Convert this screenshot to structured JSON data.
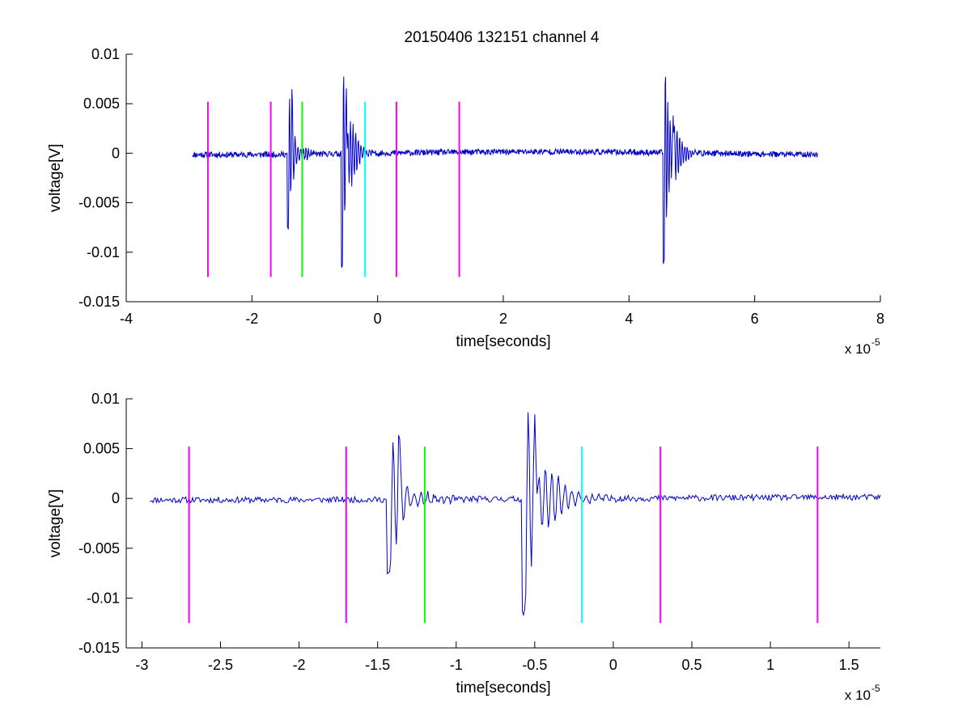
{
  "figure": {
    "title": "20150406 132151 channel 4"
  },
  "chart_data": [
    {
      "type": "line",
      "title": "20150406 132151 channel 4",
      "xlabel": "time[seconds]",
      "ylabel": "voltage[V]",
      "x_exponent_label": "x 10",
      "x_exponent_power": "-5",
      "xlim": [
        -4e-05,
        8e-05
      ],
      "ylim": [
        -0.015,
        0.01
      ],
      "x_ticks": [
        -4e-05,
        -2e-05,
        0,
        2e-05,
        4e-05,
        6e-05,
        8e-05
      ],
      "x_tick_labels": [
        "-4",
        "-2",
        "0",
        "2",
        "4",
        "6",
        "8"
      ],
      "y_ticks": [
        -0.015,
        -0.01,
        -0.005,
        0,
        0.005,
        0.01
      ],
      "y_tick_labels": [
        "-0.015",
        "-0.01",
        "-0.005",
        "0",
        "0.005",
        "0.01"
      ],
      "grid": false,
      "signal": {
        "color": "#0000cc",
        "x_range": [
          -2.95e-05,
          7e-05
        ],
        "samples": 1400,
        "seed": 11,
        "noise_amplitude": 0.0003,
        "bursts": [
          {
            "t": -1.42e-05,
            "amp": 0.0075,
            "decay": 7e-07,
            "freq": 2600000.0,
            "sign": -1
          },
          {
            "t": -1.35e-05,
            "amp": 0.0035,
            "decay": 1e-06,
            "freq": 2400000.0,
            "sign": 1
          },
          {
            "t": -5.6e-06,
            "amp": 0.0114,
            "decay": 7e-07,
            "freq": 2600000.0,
            "sign": -1
          },
          {
            "t": -4.8e-06,
            "amp": 0.0042,
            "decay": 1.3e-06,
            "freq": 2300000.0,
            "sign": 1
          },
          {
            "t": 4.56e-05,
            "amp": 0.011,
            "decay": 8e-07,
            "freq": 2600000.0,
            "sign": -1
          },
          {
            "t": 4.72e-05,
            "amp": 0.0035,
            "decay": 1e-06,
            "freq": 2400000.0,
            "sign": 1
          }
        ]
      },
      "markers": [
        {
          "x": -2.7e-05,
          "y": [
            -0.0125,
            0.0052
          ],
          "color": "#ff00ff"
        },
        {
          "x": -1.7e-05,
          "y": [
            -0.0125,
            0.0052
          ],
          "color": "#ff00ff"
        },
        {
          "x": -1.2e-05,
          "y": [
            -0.0125,
            0.0052
          ],
          "color": "#00ff00"
        },
        {
          "x": -2e-06,
          "y": [
            -0.0125,
            0.0052
          ],
          "color": "#00ffff"
        },
        {
          "x": 3e-06,
          "y": [
            -0.0125,
            0.0052
          ],
          "color": "#ff00ff"
        },
        {
          "x": 1.3e-05,
          "y": [
            -0.0125,
            0.0052
          ],
          "color": "#ff00ff"
        }
      ]
    },
    {
      "type": "line",
      "title": "",
      "xlabel": "time[seconds]",
      "ylabel": "voltage[V]",
      "x_exponent_label": "x 10",
      "x_exponent_power": "-5",
      "xlim": [
        -3.1e-05,
        1.7e-05
      ],
      "ylim": [
        -0.015,
        0.01
      ],
      "x_ticks": [
        -3e-05,
        -2.5e-05,
        -2e-05,
        -1.5e-05,
        -1e-05,
        -5e-06,
        0,
        5e-06,
        1e-05,
        1.5e-05
      ],
      "x_tick_labels": [
        "-3",
        "-2.5",
        "-2",
        "-1.5",
        "-1",
        "-0.5",
        "0",
        "0.5",
        "1",
        "1.5"
      ],
      "y_ticks": [
        -0.015,
        -0.01,
        -0.005,
        0,
        0.005,
        0.01
      ],
      "y_tick_labels": [
        "-0.015",
        "-0.01",
        "-0.005",
        "0",
        "0.005",
        "0.01"
      ],
      "grid": false,
      "signal": {
        "color": "#0000cc",
        "x_range": [
          -2.95e-05,
          1.7e-05
        ],
        "samples": 650,
        "seed": 11,
        "noise_amplitude": 0.0003,
        "bursts": [
          {
            "t": -1.42e-05,
            "amp": 0.0075,
            "decay": 7e-07,
            "freq": 2600000.0,
            "sign": -1
          },
          {
            "t": -1.35e-05,
            "amp": 0.0035,
            "decay": 1e-06,
            "freq": 2400000.0,
            "sign": 1
          },
          {
            "t": -5.6e-06,
            "amp": 0.0114,
            "decay": 7e-07,
            "freq": 2600000.0,
            "sign": -1
          },
          {
            "t": -4.8e-06,
            "amp": 0.0042,
            "decay": 1.3e-06,
            "freq": 2300000.0,
            "sign": 1
          }
        ]
      },
      "markers": [
        {
          "x": -2.7e-05,
          "y": [
            -0.0125,
            0.0052
          ],
          "color": "#ff00ff"
        },
        {
          "x": -1.7e-05,
          "y": [
            -0.0125,
            0.0052
          ],
          "color": "#ff00ff"
        },
        {
          "x": -1.2e-05,
          "y": [
            -0.0125,
            0.0052
          ],
          "color": "#00ff00"
        },
        {
          "x": -2e-06,
          "y": [
            -0.0125,
            0.0052
          ],
          "color": "#00ffff"
        },
        {
          "x": 3e-06,
          "y": [
            -0.0125,
            0.0052
          ],
          "color": "#ff00ff"
        },
        {
          "x": 1.3e-05,
          "y": [
            -0.0125,
            0.0052
          ],
          "color": "#ff00ff"
        }
      ]
    }
  ]
}
